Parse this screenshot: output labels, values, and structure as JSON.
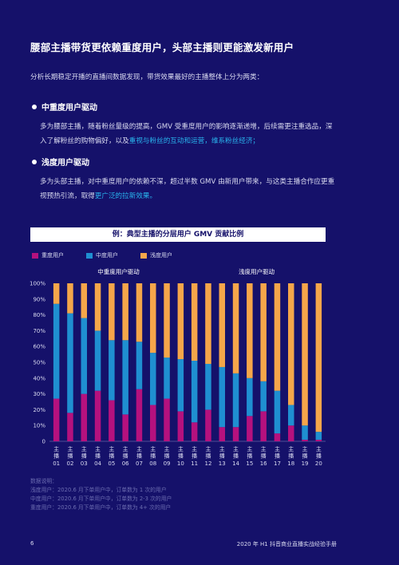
{
  "page": {
    "title": "腰部主播带货更依赖重度用户，头部主播则更能激发新用户",
    "intro": "分析长期稳定开播的直播间数据发现，带货效果最好的主播整体上分为两类：",
    "sections": [
      {
        "heading": "中重度用户驱动",
        "body_plain": "多为腰部主播，随着粉丝量级的提高，GMV 受重度用户的影响逐渐递增，后续需更注重选品，深入了解粉丝的购物偏好，以及",
        "body_highlight": "重视与粉丝的互动和运营，维系粉丝经济；"
      },
      {
        "heading": "浅度用户驱动",
        "body_plain": "多为头部主播，对中重度用户的依赖不深，超过半数 GMV 由新用户带来，与这类主播合作应更重视预热引流，取得",
        "body_highlight": "更广泛的拉新效果。"
      }
    ],
    "notes": {
      "heading": "数据说明：",
      "lines": [
        "浅度用户：2020.6 月下单用户中，订单数为 1 次的用户",
        "中度用户：2020.6 月下单用户中，订单数为 2-3 次的用户",
        "重度用户：2020.6 月下单用户中，订单数为 4+ 次的用户"
      ]
    },
    "footer": {
      "page_number": "6",
      "doc_title": "2020 年 H1 抖音商业直播实战经验手册"
    }
  },
  "colors": {
    "background": "#15116a",
    "heavy": "#b5117e",
    "medium": "#1f8fd1",
    "light": "#f5a64a",
    "highlight": "#29b5ee"
  },
  "chart_data": {
    "type": "bar",
    "stacked": true,
    "title": "例：典型主播的分层用户 GMV 贡献比例",
    "group_labels": [
      {
        "label": "中重度用户驱动",
        "from": 1,
        "to": 10
      },
      {
        "label": "浅度用户驱动",
        "from": 11,
        "to": 20
      }
    ],
    "category_prefix": "主播",
    "categories": [
      "01",
      "02",
      "03",
      "04",
      "05",
      "06",
      "07",
      "08",
      "09",
      "10",
      "11",
      "12",
      "13",
      "14",
      "15",
      "16",
      "17",
      "18",
      "19",
      "20"
    ],
    "ylim": [
      0,
      100
    ],
    "yticks": [
      "0",
      "10%",
      "20%",
      "30%",
      "40%",
      "50%",
      "60%",
      "70%",
      "80%",
      "90%",
      "100%"
    ],
    "legend": [
      "重度用户",
      "中度用户",
      "浅度用户"
    ],
    "legend_position": "top-left",
    "series": [
      {
        "name": "重度用户",
        "values": [
          27,
          18,
          30,
          32,
          26,
          17,
          33,
          23,
          27,
          19,
          12,
          20,
          9,
          9,
          16,
          19,
          5,
          10,
          1,
          1
        ]
      },
      {
        "name": "中度用户",
        "values": [
          60,
          63,
          48,
          38,
          38,
          47,
          30,
          33,
          26,
          33,
          39,
          29,
          38,
          34,
          24,
          19,
          27,
          13,
          9,
          5
        ]
      },
      {
        "name": "浅度用户",
        "values": [
          13,
          19,
          22,
          30,
          36,
          36,
          37,
          44,
          47,
          48,
          49,
          51,
          53,
          57,
          60,
          62,
          68,
          77,
          90,
          94
        ]
      }
    ]
  }
}
